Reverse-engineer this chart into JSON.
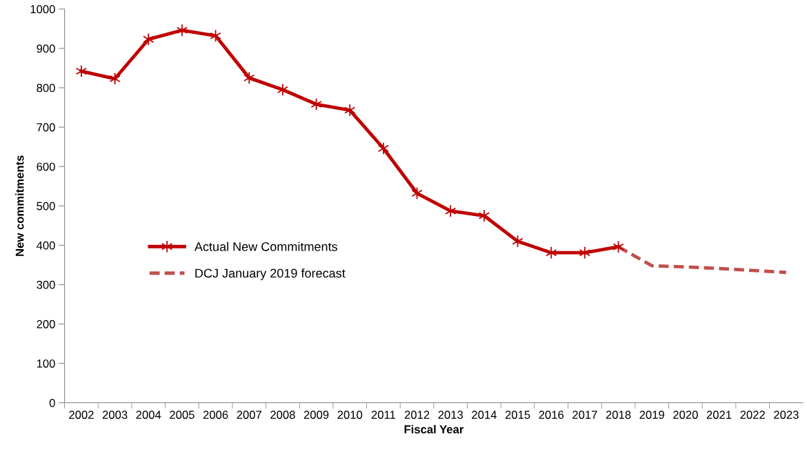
{
  "chart_data": {
    "type": "line",
    "xlabel": "Fiscal Year",
    "ylabel": "New commitments",
    "categories": [
      "2002",
      "2003",
      "2004",
      "2005",
      "2006",
      "2007",
      "2008",
      "2009",
      "2010",
      "2011",
      "2012",
      "2013",
      "2014",
      "2015",
      "2016",
      "2017",
      "2018",
      "2019",
      "2020",
      "2021",
      "2022",
      "2023"
    ],
    "series": [
      {
        "name": "Actual New Commitments",
        "color": "#c00000",
        "marker": "cross",
        "line_style": "solid",
        "values": [
          842,
          823,
          923,
          946,
          932,
          825,
          795,
          758,
          743,
          646,
          532,
          487,
          475,
          410,
          381,
          381,
          396,
          null,
          null,
          null,
          null,
          null
        ]
      },
      {
        "name": "DCJ January 2019 forecast",
        "color": "#c0504d",
        "marker": "none",
        "line_style": "dashed",
        "values": [
          null,
          null,
          null,
          null,
          null,
          null,
          null,
          null,
          null,
          null,
          null,
          null,
          null,
          null,
          null,
          null,
          396,
          348,
          345,
          341,
          336,
          331
        ]
      }
    ],
    "ylim": [
      0,
      1000
    ],
    "yticks": [
      0,
      100,
      200,
      300,
      400,
      500,
      600,
      700,
      800,
      900,
      1000
    ],
    "grid": false,
    "legend": "left"
  }
}
